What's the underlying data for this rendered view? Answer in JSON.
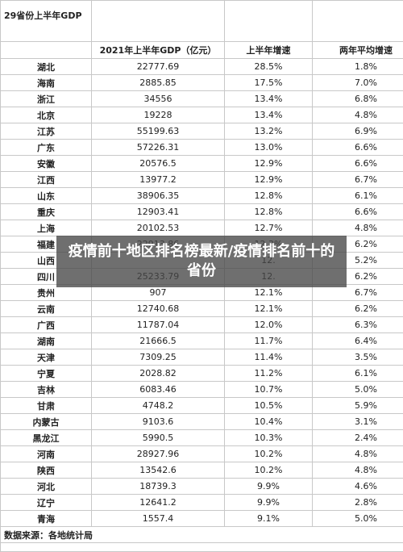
{
  "table": {
    "title": "29省份上半年GDP",
    "headers": [
      "",
      "2021年上半年GDP（亿元）",
      "上半年增速",
      "两年平均增速"
    ],
    "rows": [
      [
        "湖北",
        "22777.69",
        "28.5%",
        "1.8%"
      ],
      [
        "海南",
        "2885.85",
        "17.5%",
        "7.0%"
      ],
      [
        "浙江",
        "34556",
        "13.4%",
        "6.8%"
      ],
      [
        "北京",
        "19228",
        "13.4%",
        "4.8%"
      ],
      [
        "江苏",
        "55199.63",
        "13.2%",
        "6.9%"
      ],
      [
        "广东",
        "57226.31",
        "13.0%",
        "6.6%"
      ],
      [
        "安徽",
        "20576.5",
        "12.9%",
        "6.6%"
      ],
      [
        "江西",
        "13977.2",
        "12.9%",
        "6.7%"
      ],
      [
        "山东",
        "38906.35",
        "12.8%",
        "6.1%"
      ],
      [
        "重庆",
        "12903.41",
        "12.8%",
        "6.6%"
      ],
      [
        "上海",
        "20102.53",
        "12.7%",
        "4.8%"
      ],
      [
        "福建",
        "22913.86",
        "12.3%",
        "6.2%"
      ],
      [
        "山西",
        "",
        "12.",
        "5.2%"
      ],
      [
        "四川",
        "25233.79",
        "12.",
        "6.2%"
      ],
      [
        "贵州",
        "907",
        "12.1%",
        "6.7%"
      ],
      [
        "云南",
        "12740.68",
        "12.1%",
        "6.2%"
      ],
      [
        "广西",
        "11787.04",
        "12.0%",
        "6.3%"
      ],
      [
        "湖南",
        "21666.5",
        "11.7%",
        "6.4%"
      ],
      [
        "天津",
        "7309.25",
        "11.4%",
        "3.5%"
      ],
      [
        "宁夏",
        "2028.82",
        "11.2%",
        "6.1%"
      ],
      [
        "吉林",
        "6083.46",
        "10.7%",
        "5.0%"
      ],
      [
        "甘肃",
        "4748.2",
        "10.5%",
        "5.9%"
      ],
      [
        "内蒙古",
        "9103.6",
        "10.4%",
        "3.1%"
      ],
      [
        "黑龙江",
        "5990.5",
        "10.3%",
        "2.4%"
      ],
      [
        "河南",
        "28927.96",
        "10.2%",
        "4.8%"
      ],
      [
        "陕西",
        "13542.6",
        "10.2%",
        "4.8%"
      ],
      [
        "河北",
        "18739.3",
        "9.9%",
        "4.6%"
      ],
      [
        "辽宁",
        "12641.2",
        "9.9%",
        "2.8%"
      ],
      [
        "青海",
        "1557.4",
        "9.1%",
        "5.0%"
      ]
    ],
    "source": "数据来源：各地统计局"
  },
  "overlay": {
    "text": "疫情前十地区排名榜最新/疫情排名前十的省份"
  }
}
